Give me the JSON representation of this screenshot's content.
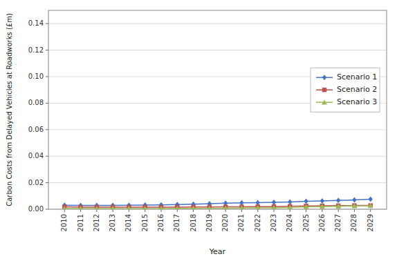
{
  "chart_data": {
    "type": "line",
    "x_label": "Year",
    "y_label": "Carbon Costs from Delayed Vehicles at Roadworks (£m)",
    "x": [
      2010,
      2011,
      2012,
      2013,
      2014,
      2015,
      2016,
      2017,
      2018,
      2019,
      2020,
      2021,
      2022,
      2023,
      2024,
      2025,
      2026,
      2027,
      2028,
      2029
    ],
    "xlim": [
      2009,
      2030
    ],
    "xticks": [
      2010,
      2011,
      2012,
      2013,
      2014,
      2015,
      2016,
      2017,
      2018,
      2019,
      2020,
      2021,
      2022,
      2023,
      2024,
      2025,
      2026,
      2027,
      2028,
      2029
    ],
    "ylim": [
      0,
      0.15
    ],
    "yticks": [
      {
        "value": 0,
        "label": "0.00"
      },
      0.02,
      0.04,
      0.06,
      0.08,
      {
        "value": 0.1,
        "label": "0.10"
      },
      0.12,
      0.14
    ],
    "grid": true,
    "legend": "right",
    "series": [
      {
        "name": "Scenario 1",
        "color": "#4472C4",
        "marker": "diamond",
        "values": [
          0.003,
          0.0028,
          0.0028,
          0.0028,
          0.003,
          0.0031,
          0.0033,
          0.0035,
          0.0038,
          0.0042,
          0.0046,
          0.0048,
          0.005,
          0.0052,
          0.0055,
          0.006,
          0.0063,
          0.0066,
          0.007,
          0.0075
        ]
      },
      {
        "name": "Scenario 2",
        "color": "#C0504D",
        "marker": "square",
        "values": [
          0.0018,
          0.0016,
          0.0016,
          0.0016,
          0.0016,
          0.0016,
          0.0016,
          0.0016,
          0.0017,
          0.0017,
          0.0018,
          0.0018,
          0.0019,
          0.002,
          0.0022,
          0.0025,
          0.0026,
          0.0027,
          0.0028,
          0.0028
        ]
      },
      {
        "name": "Scenario 3",
        "color": "#9BBB59",
        "marker": "triangle",
        "values": [
          0.0005,
          0.0005,
          0.0005,
          0.0005,
          0.0005,
          0.0005,
          0.0005,
          0.0006,
          0.0006,
          0.0007,
          0.0008,
          0.0009,
          0.001,
          0.0011,
          0.0013,
          0.0018,
          0.0019,
          0.0022,
          0.0025,
          0.0026
        ]
      }
    ]
  }
}
